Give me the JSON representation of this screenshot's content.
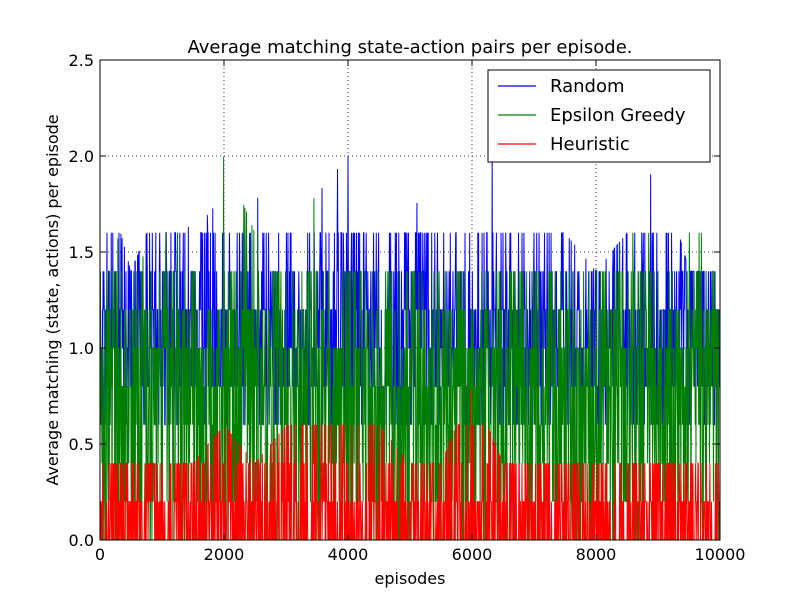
{
  "chart_data": {
    "type": "line",
    "title": "Average matching state-action pairs per episode.",
    "xlabel": "episodes",
    "ylabel": "Average matching (state, actions) per episode",
    "xlim": [
      0,
      10000
    ],
    "ylim": [
      0,
      2.5
    ],
    "x_ticks": [
      0,
      2000,
      4000,
      6000,
      8000,
      10000
    ],
    "x_tick_labels": [
      "0",
      "2000",
      "4000",
      "6000",
      "8000",
      "10000"
    ],
    "y_ticks": [
      0,
      0.5,
      1.0,
      1.5,
      2.0,
      2.5
    ],
    "y_tick_labels": [
      "0.0",
      "0.5",
      "1.0",
      "1.5",
      "2.0",
      "2.5"
    ],
    "grid": true,
    "legend_position": "top-right",
    "series": [
      {
        "name": "Random",
        "color": "#0000ff",
        "x": [
          0,
          500,
          1000,
          1500,
          2000,
          2500,
          3000,
          3500,
          4000,
          4500,
          5000,
          5500,
          6000,
          6500,
          7000,
          7500,
          8000,
          8500,
          9000,
          9500,
          10000
        ],
        "peaks": [
          2.0,
          1.4,
          1.8,
          1.6,
          1.8,
          1.8,
          1.6,
          1.8,
          2.0,
          1.6,
          1.8,
          1.6,
          2.2,
          2.0,
          1.8,
          1.6,
          1.4,
          1.6,
          2.0,
          1.4,
          1.4
        ],
        "baseline": 0.6
      },
      {
        "name": "Epsilon Greedy",
        "color": "#008000",
        "x": [
          0,
          500,
          1000,
          1500,
          2000,
          2500,
          3000,
          3500,
          4000,
          4500,
          5000,
          5500,
          6000,
          6500,
          7000,
          7500,
          8000,
          8500,
          9000,
          9500,
          10000
        ],
        "peaks": [
          1.8,
          1.4,
          1.6,
          1.6,
          2.0,
          1.6,
          1.6,
          1.8,
          1.6,
          1.6,
          1.6,
          1.6,
          1.8,
          1.6,
          2.0,
          1.6,
          1.4,
          1.6,
          1.6,
          1.6,
          1.6
        ],
        "baseline": 0.0
      },
      {
        "name": "Heuristic",
        "color": "#ff0000",
        "x": [
          0,
          500,
          1000,
          1500,
          2000,
          2500,
          3000,
          3500,
          4000,
          4500,
          5000,
          5500,
          6000,
          6500,
          7000,
          7500,
          8000,
          8500,
          9000,
          9500,
          10000
        ],
        "peaks": [
          0.4,
          0.4,
          0.4,
          0.4,
          0.6,
          0.4,
          0.6,
          0.6,
          0.6,
          0.6,
          0.4,
          0.4,
          0.8,
          0.4,
          0.4,
          0.4,
          0.4,
          0.4,
          0.4,
          0.4,
          0.4
        ],
        "baseline": 0.0
      }
    ]
  }
}
